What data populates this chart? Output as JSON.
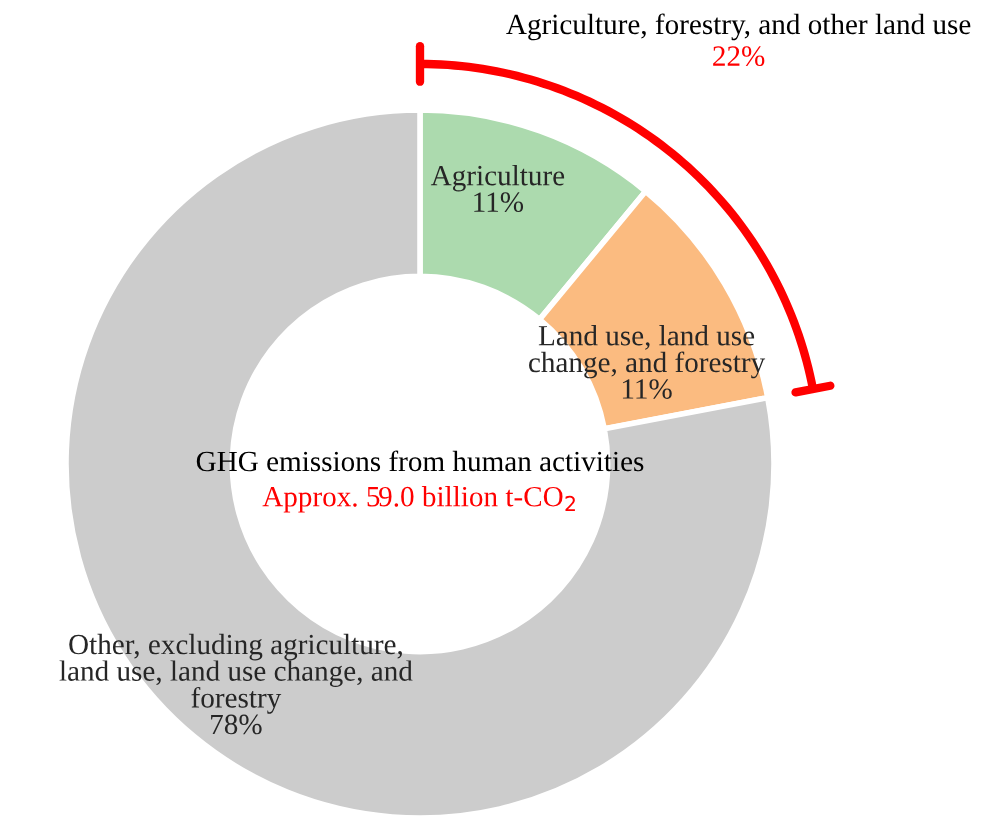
{
  "chart_data": {
    "type": "donut",
    "categories": [
      "Agriculture",
      "Land use, land use\nchange, and forestry",
      "Other, excluding agriculture,\nland use, land use change, and\nforestry"
    ],
    "values": [
      11,
      11,
      78
    ],
    "colors": [
      "#acdaae",
      "#fbbb80",
      "#cccccc"
    ],
    "value_labels": [
      "11%",
      "11%",
      "78%"
    ],
    "annotations": [
      "Agriculture, forestry, and other land use",
      "22%",
      "GHG emissions from human activities",
      "Approx. 59.0 billion t-CO$_{2}$"
    ]
  }
}
